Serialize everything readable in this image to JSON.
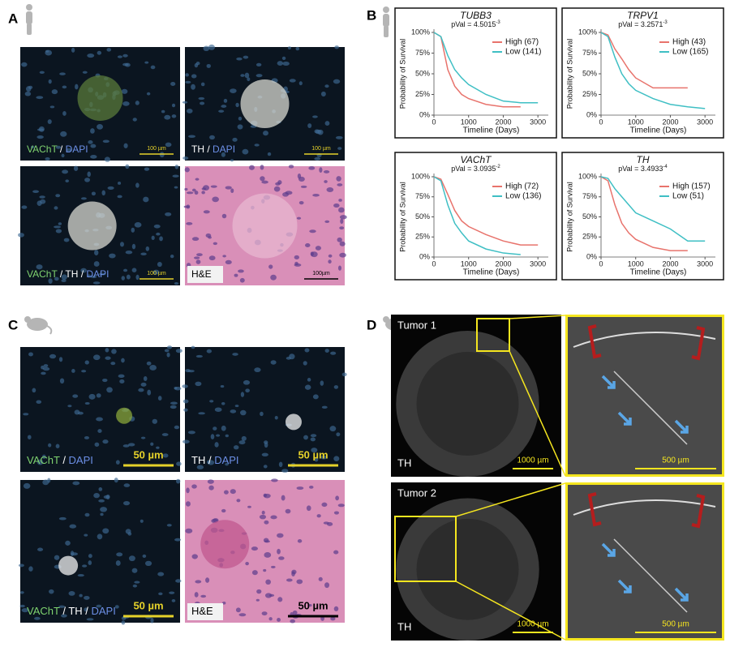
{
  "panel_labels": [
    "A",
    "B",
    "C",
    "D"
  ],
  "panel_a": {
    "images": [
      {
        "caption": [
          {
            "t": "VAChT",
            "c": "#7fd36f"
          },
          {
            "t": " / ",
            "c": "#ffffff"
          },
          {
            "t": "DAPI",
            "c": "#6c8fe6"
          }
        ],
        "scale": "100 µm"
      },
      {
        "caption": [
          {
            "t": "TH",
            "c": "#ffffff"
          },
          {
            "t": " / ",
            "c": "#ffffff"
          },
          {
            "t": "DAPI",
            "c": "#6c8fe6"
          }
        ],
        "scale": "100 µm"
      },
      {
        "caption": [
          {
            "t": "VAChT",
            "c": "#7fd36f"
          },
          {
            "t": " / ",
            "c": "#ffffff"
          },
          {
            "t": "TH",
            "c": "#ffffff"
          },
          {
            "t": " / ",
            "c": "#ffffff"
          },
          {
            "t": "DAPI",
            "c": "#6c8fe6"
          }
        ],
        "scale": "100 µm"
      },
      {
        "caption": [
          {
            "t": "H&E",
            "c": "#000000"
          }
        ],
        "scale": "100µm"
      }
    ]
  },
  "panel_c": {
    "images": [
      {
        "caption": [
          {
            "t": "VAChT",
            "c": "#7fd36f"
          },
          {
            "t": " / ",
            "c": "#ffffff"
          },
          {
            "t": "DAPI",
            "c": "#6c8fe6"
          }
        ],
        "scale": "50 µm"
      },
      {
        "caption": [
          {
            "t": "TH",
            "c": "#ffffff"
          },
          {
            "t": " / ",
            "c": "#ffffff"
          },
          {
            "t": "DAPI",
            "c": "#6c8fe6"
          }
        ],
        "scale": "50 µm"
      },
      {
        "caption": [
          {
            "t": "VAChT",
            "c": "#7fd36f"
          },
          {
            "t": " / ",
            "c": "#ffffff"
          },
          {
            "t": "TH",
            "c": "#ffffff"
          },
          {
            "t": " / ",
            "c": "#ffffff"
          },
          {
            "t": "DAPI",
            "c": "#6c8fe6"
          }
        ],
        "scale": "50 µm"
      },
      {
        "caption": [
          {
            "t": "H&E",
            "c": "#000000"
          }
        ],
        "scale": "50 µm"
      }
    ]
  },
  "panel_d": {
    "images": [
      {
        "title": "Tumor 1",
        "stain": "TH",
        "scale": "1000 µm"
      },
      {
        "scale": "500 µm"
      },
      {
        "title": "Tumor 2",
        "stain": "TH",
        "scale": "1000 µm"
      },
      {
        "scale": "500 µm"
      }
    ]
  },
  "chart_data": [
    {
      "type": "line",
      "title": "TUBB3",
      "pval": "pVal = 4.5015",
      "pval_exp": "-3",
      "x_label": "Timeline (Days)",
      "y_label": "Probability of Survival",
      "x": [
        0,
        200,
        400,
        600,
        800,
        1000,
        1500,
        2000,
        2500,
        3000
      ],
      "series": [
        {
          "name": "High (67)",
          "color": "#e8736c",
          "values": [
            100,
            95,
            55,
            35,
            25,
            20,
            13,
            10,
            10,
            null
          ]
        },
        {
          "name": "Low (141)",
          "color": "#3fbfc4",
          "values": [
            100,
            95,
            72,
            55,
            45,
            37,
            25,
            17,
            15,
            15
          ]
        }
      ],
      "xlim": [
        0,
        3300
      ],
      "xticks": [
        0,
        1000,
        2000,
        3000
      ],
      "ylim": [
        0,
        100
      ],
      "yticks": [
        {
          "value": 0,
          "label": "0%"
        },
        {
          "value": 25,
          "label": "25%"
        },
        {
          "value": 50,
          "label": "50%"
        },
        {
          "value": 75,
          "label": "75%"
        },
        {
          "value": 100,
          "label": "100%"
        }
      ]
    },
    {
      "type": "line",
      "title": "TRPV1",
      "pval": "pVal = 3.2571",
      "pval_exp": "-3",
      "x_label": "Timeline (Days)",
      "y_label": "Probability of Survival",
      "x": [
        0,
        200,
        400,
        600,
        800,
        1000,
        1500,
        2000,
        2500,
        3000
      ],
      "series": [
        {
          "name": "High (43)",
          "color": "#e8736c",
          "values": [
            100,
            97,
            80,
            68,
            55,
            45,
            33,
            33,
            33,
            null
          ]
        },
        {
          "name": "Low (165)",
          "color": "#3fbfc4",
          "values": [
            100,
            95,
            70,
            50,
            38,
            30,
            20,
            13,
            10,
            8
          ]
        }
      ],
      "xlim": [
        0,
        3300
      ],
      "xticks": [
        0,
        1000,
        2000,
        3000
      ],
      "ylim": [
        0,
        100
      ],
      "yticks": [
        {
          "value": 0,
          "label": "0%"
        },
        {
          "value": 25,
          "label": "25%"
        },
        {
          "value": 50,
          "label": "50%"
        },
        {
          "value": 75,
          "label": "75%"
        },
        {
          "value": 100,
          "label": "100%"
        }
      ]
    },
    {
      "type": "line",
      "title": "VAChT",
      "pval": "pVal = 3.0935",
      "pval_exp": "-2",
      "x_label": "Timeline (Days)",
      "y_label": "Probability of Survival",
      "x": [
        0,
        200,
        400,
        600,
        800,
        1000,
        1500,
        2000,
        2500,
        3000
      ],
      "series": [
        {
          "name": "High (72)",
          "color": "#e8736c",
          "values": [
            100,
            97,
            78,
            58,
            45,
            38,
            28,
            20,
            15,
            15
          ]
        },
        {
          "name": "Low (136)",
          "color": "#3fbfc4",
          "values": [
            100,
            95,
            65,
            42,
            30,
            20,
            10,
            5,
            3,
            null
          ]
        }
      ],
      "xlim": [
        0,
        3300
      ],
      "xticks": [
        0,
        1000,
        2000,
        3000
      ],
      "ylim": [
        0,
        100
      ],
      "yticks": [
        {
          "value": 0,
          "label": "0%"
        },
        {
          "value": 25,
          "label": "25%"
        },
        {
          "value": 50,
          "label": "50%"
        },
        {
          "value": 75,
          "label": "75%"
        },
        {
          "value": 100,
          "label": "100%"
        }
      ]
    },
    {
      "type": "line",
      "title": "TH",
      "pval": "pVal = 3.4933",
      "pval_exp": "-4",
      "x_label": "Timeline (Days)",
      "y_label": "Probability of Survival",
      "x": [
        0,
        200,
        400,
        600,
        800,
        1000,
        1500,
        2000,
        2500,
        3000
      ],
      "series": [
        {
          "name": "High (157)",
          "color": "#e8736c",
          "values": [
            100,
            95,
            65,
            42,
            30,
            22,
            12,
            8,
            8,
            null
          ]
        },
        {
          "name": "Low (51)",
          "color": "#3fbfc4",
          "values": [
            100,
            98,
            85,
            75,
            65,
            55,
            45,
            35,
            20,
            20
          ]
        }
      ],
      "xlim": [
        0,
        3300
      ],
      "xticks": [
        0,
        1000,
        2000,
        3000
      ],
      "ylim": [
        0,
        100
      ],
      "yticks": [
        {
          "value": 0,
          "label": "0%"
        },
        {
          "value": 25,
          "label": "25%"
        },
        {
          "value": 50,
          "label": "50%"
        },
        {
          "value": 75,
          "label": "75%"
        },
        {
          "value": 100,
          "label": "100%"
        }
      ]
    }
  ]
}
